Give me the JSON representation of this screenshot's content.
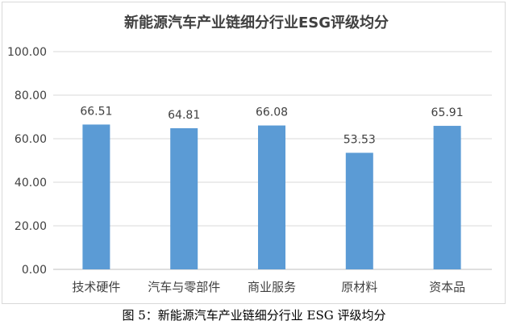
{
  "chart_data": {
    "type": "bar",
    "title": "新能源汽车产业链细分行业ESG评级均分",
    "categories": [
      "技术硬件",
      "汽车与零部件",
      "商业服务",
      "原材料",
      "资本品"
    ],
    "values": [
      66.51,
      64.81,
      66.08,
      53.53,
      65.91
    ],
    "data_labels": [
      "66.51",
      "64.81",
      "66.08",
      "53.53",
      "65.91"
    ],
    "ylim": [
      0,
      100
    ],
    "yticks": [
      "0.00",
      "20.00",
      "40.00",
      "60.00",
      "80.00",
      "100.00"
    ],
    "grid": true,
    "legend": "none",
    "bar_color": "#5b9bd5"
  },
  "caption": "图 5：新能源汽车产业链细分行业 ESG 评级均分"
}
